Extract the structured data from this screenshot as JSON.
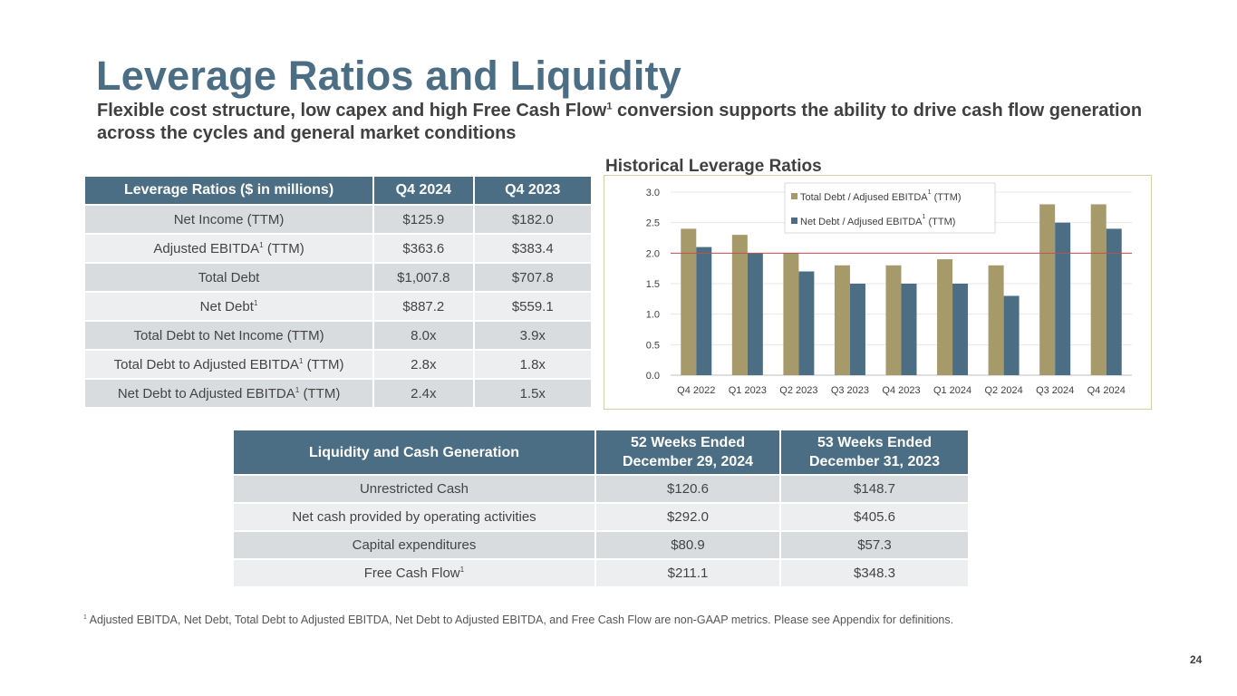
{
  "slide": {
    "title": "Leverage Ratios and Liquidity",
    "subtitle_pre": "Flexible cost structure, low capex and high Free Cash Flow",
    "subtitle_sup": "1",
    "subtitle_post": " conversion supports the ability to drive cash flow generation across the cycles and general market conditions",
    "page_number": "24"
  },
  "leverage_table": {
    "headers": [
      "Leverage Ratios ($ in millions)",
      "Q4 2024",
      "Q4 2023"
    ],
    "rows": [
      {
        "pre": "Net Income (TTM)",
        "sup": "",
        "post": "",
        "q4_2024": "$125.9",
        "q4_2023": "$182.0"
      },
      {
        "pre": "Adjusted EBITDA",
        "sup": "1",
        "post": " (TTM)",
        "q4_2024": "$363.6",
        "q4_2023": "$383.4"
      },
      {
        "pre": "Total Debt",
        "sup": "",
        "post": "",
        "q4_2024": "$1,007.8",
        "q4_2023": "$707.8"
      },
      {
        "pre": "Net Debt",
        "sup": "1",
        "post": "",
        "q4_2024": "$887.2",
        "q4_2023": "$559.1"
      },
      {
        "pre": "Total Debt to Net Income (TTM)",
        "sup": "",
        "post": "",
        "q4_2024": "8.0x",
        "q4_2023": "3.9x"
      },
      {
        "pre": "Total Debt to Adjusted EBITDA",
        "sup": "1",
        "post": " (TTM)",
        "q4_2024": "2.8x",
        "q4_2023": "1.8x"
      },
      {
        "pre": "Net Debt to Adjusted EBITDA",
        "sup": "1",
        "post": " (TTM)",
        "q4_2024": "2.4x",
        "q4_2023": "1.5x"
      }
    ]
  },
  "chart_data": {
    "type": "bar",
    "title": "Historical Leverage Ratios",
    "categories": [
      "Q4 2022",
      "Q1 2023",
      "Q2 2023",
      "Q3 2023",
      "Q4 2023",
      "Q1 2024",
      "Q2 2024",
      "Q3 2024",
      "Q4 2024"
    ],
    "series": [
      {
        "name": "Total Debt / Adjused EBITDA",
        "sup": "1",
        "suffix": " (TTM)",
        "color": "#a69a6a",
        "values": [
          2.4,
          2.3,
          2.0,
          1.8,
          1.8,
          1.9,
          1.8,
          2.8,
          2.8
        ]
      },
      {
        "name": "Net Debt / Adjused EBITDA",
        "sup": "1",
        "suffix": " (TTM)",
        "color": "#4c6e84",
        "values": [
          2.1,
          2.0,
          1.7,
          1.5,
          1.5,
          1.5,
          1.3,
          2.5,
          2.4
        ]
      }
    ],
    "yticks": [
      "0.0",
      "0.5",
      "1.0",
      "1.5",
      "2.0",
      "2.5",
      "3.0"
    ],
    "ylim": [
      0,
      3.0
    ],
    "reference_line": {
      "value": 2.0,
      "color": "#c0504d"
    },
    "legend_position": "top-center",
    "gridlines": true
  },
  "liquidity_table": {
    "headers": [
      "Liquidity and Cash Generation",
      "52 Weeks Ended December 29, 2024",
      "53 Weeks Ended December 31, 2023"
    ],
    "rows": [
      {
        "pre": "Unrestricted Cash",
        "sup": "",
        "c2024": "$120.6",
        "c2023": "$148.7"
      },
      {
        "pre": "Net cash provided by operating activities",
        "sup": "",
        "c2024": "$292.0",
        "c2023": "$405.6"
      },
      {
        "pre": "Capital expenditures",
        "sup": "",
        "c2024": "$80.9",
        "c2023": "$57.3"
      },
      {
        "pre": "Free Cash Flow",
        "sup": "1",
        "c2024": "$211.1",
        "c2023": "$348.3"
      }
    ]
  },
  "footnote": {
    "sup": "1",
    "text": " Adjusted EBITDA, Net Debt, Total Debt to Adjusted EBITDA, Net Debt to Adjusted EBITDA, and Free Cash Flow are non-GAAP metrics. Please see Appendix for definitions."
  }
}
